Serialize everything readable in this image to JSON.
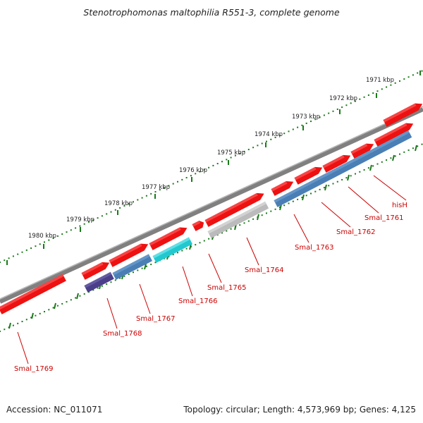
{
  "title": "Stenotrophomonas maltophilia R551-3, complete genome",
  "footer": {
    "accession": "Accession: NC_011071",
    "summary": "Topology: circular; Length: 4,573,969 bp; Genes: 4,125"
  },
  "colors": {
    "background": "#ffffff",
    "backbone": "#808080",
    "tick": "#1a7a1a",
    "cds": "#ee1111",
    "gene_label": "#cc0000",
    "steel_blue": "#4a7fb5",
    "dark_purple": "#4b3f8a",
    "cyan": "#22c8d0",
    "light_gray": "#bbbbbb"
  },
  "kbp_labels": [
    "1971 kbp",
    "1972 kbp",
    "1973 kbp",
    "1974 kbp",
    "1975 kbp",
    "1976 kbp",
    "1977 kbp",
    "1978 kbp",
    "1979 kbp",
    "1980 kbp"
  ],
  "genes": [
    {
      "name": "hisH",
      "color": "cds"
    },
    {
      "name": "Smal_1761",
      "color": "cds"
    },
    {
      "name": "Smal_1762",
      "color": "cds"
    },
    {
      "name": "Smal_1763",
      "color": "steel_blue"
    },
    {
      "name": "Smal_1764",
      "color": "light_gray"
    },
    {
      "name": "Smal_1765",
      "color": "cds"
    },
    {
      "name": "Smal_1766",
      "color": "cyan"
    },
    {
      "name": "Smal_1767",
      "color": "steel_blue"
    },
    {
      "name": "Smal_1768",
      "color": "dark_purple"
    },
    {
      "name": "Smal_1769",
      "color": "cds"
    }
  ]
}
